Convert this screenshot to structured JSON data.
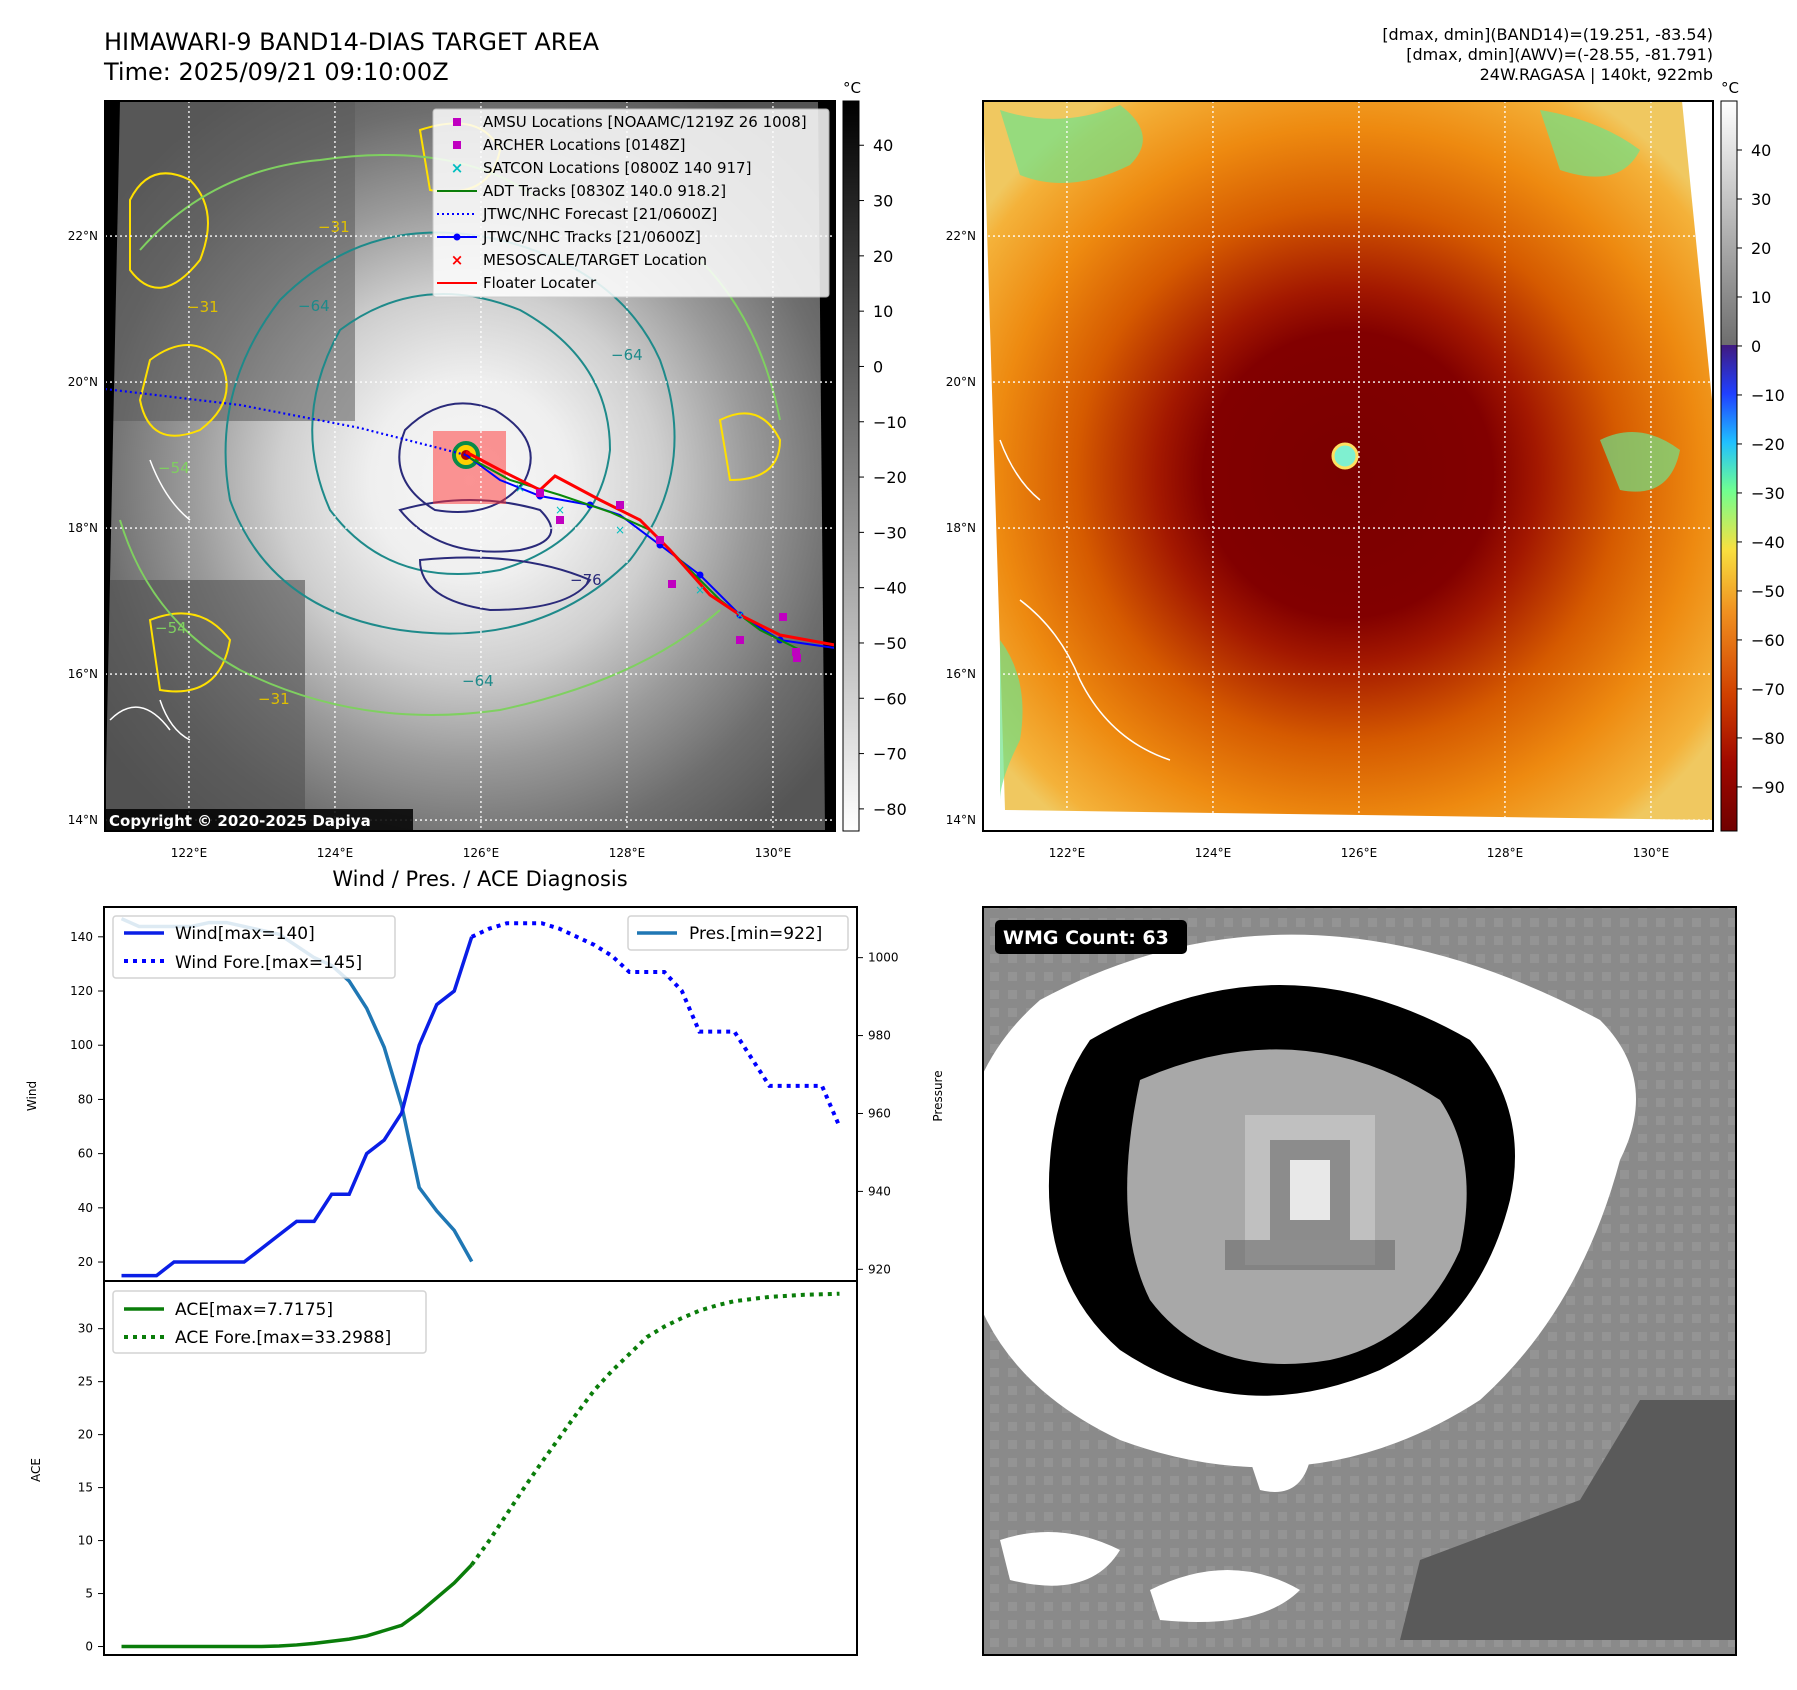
{
  "header": {
    "title_line1": "HIMAWARI-9 BAND14-DIAS TARGET AREA",
    "title_line2": "Time: 2025/09/21 09:10:00Z",
    "info_line1": "[dmax, dmin](BAND14)=(19.251, -83.54)",
    "info_line2": "[dmax, dmin](AWV)=(-28.55, -81.791)",
    "info_line3": "24W.RAGASA | 140kt, 922mb"
  },
  "map_axes": {
    "lat_labels": [
      "22°N",
      "20°N",
      "18°N",
      "16°N",
      "14°N"
    ],
    "lon_labels": [
      "122°E",
      "124°E",
      "126°E",
      "128°E",
      "130°E"
    ],
    "lat_values": [
      22,
      20,
      18,
      16,
      14
    ],
    "lon_values": [
      122,
      124,
      126,
      128,
      130
    ],
    "lon_range": [
      120.85,
      130.85
    ],
    "lat_range": [
      13.85,
      23.85
    ]
  },
  "colors": {
    "wind": "#0a1ee6",
    "pressure": "#1f77b4",
    "ace": "#0a7d0a",
    "track_red": "#ff0000",
    "forecast_blue": "#0000ff",
    "marker_magenta": "#c000c0",
    "marker_cyan": "#00bfbf",
    "badge_bg": "#000000",
    "badge_text": "#ffffff"
  },
  "legend_left": [
    {
      "label": "AMSU Locations [NOAAMC/1219Z 26 1008]",
      "marker": "square",
      "color": "#c000c0"
    },
    {
      "label": "ARCHER Locations [0148Z]",
      "marker": "square",
      "color": "#c000c0"
    },
    {
      "label": "SATCON Locations [0800Z 140 917]",
      "marker": "x",
      "color": "#00bfbf"
    },
    {
      "label": "ADT Tracks [0830Z 140.0 918.2]",
      "marker": "line",
      "color": "#0a7d0a"
    },
    {
      "label": "JTWC/NHC Forecast [21/0600Z]",
      "marker": "dotted",
      "color": "#0000ff"
    },
    {
      "label": "JTWC/NHC Tracks [21/0600Z]",
      "marker": "line-dot",
      "color": "#0000ff"
    },
    {
      "label": "MESOSCALE/TARGET Location",
      "marker": "x",
      "color": "#ff0000"
    },
    {
      "label": "Floater Locater",
      "marker": "line",
      "color": "#ff0000"
    }
  ],
  "colorbar_left": {
    "unit": "°C",
    "ticks": [
      "40",
      "30",
      "20",
      "10",
      "0",
      "−10",
      "−20",
      "−30",
      "−40",
      "−50",
      "−60",
      "−70",
      "−80"
    ],
    "tick_values": [
      40,
      30,
      20,
      10,
      0,
      -10,
      -20,
      -30,
      -40,
      -50,
      -60,
      -70,
      -80
    ],
    "range": [
      -84,
      48
    ]
  },
  "colorbar_right": {
    "unit": "°C",
    "ticks": [
      "40",
      "30",
      "20",
      "10",
      "0",
      "−10",
      "−20",
      "−30",
      "−40",
      "−50",
      "−60",
      "−70",
      "−80",
      "−90"
    ],
    "tick_values": [
      40,
      30,
      20,
      10,
      0,
      -10,
      -20,
      -30,
      -40,
      -50,
      -60,
      -70,
      -80,
      -90
    ],
    "range": [
      -99,
      50
    ]
  },
  "contour_labels": [
    "−64",
    "−64",
    "−64",
    "−76",
    "−31",
    "−31",
    "−31",
    "−54",
    "−54"
  ],
  "copyright": "Copyright © 2020-2025 Dapiya",
  "diag": {
    "title": "Wind / Pres. / ACE Diagnosis",
    "wind_ylabel": "Wind",
    "pres_ylabel": "Pressure",
    "ace_ylabel": "ACE",
    "wind_ticks": [
      "20",
      "40",
      "60",
      "80",
      "100",
      "120",
      "140"
    ],
    "wind_tick_values": [
      20,
      40,
      60,
      80,
      100,
      120,
      140
    ],
    "pres_ticks": [
      "920",
      "940",
      "960",
      "980",
      "1000"
    ],
    "pres_tick_values": [
      920,
      940,
      960,
      980,
      1000
    ],
    "ace_ticks": [
      "0",
      "5",
      "10",
      "15",
      "20",
      "25",
      "30"
    ],
    "ace_tick_values": [
      0,
      5,
      10,
      15,
      20,
      25,
      30
    ],
    "legend_wind": [
      "Wind[max=140]",
      "Wind Fore.[max=145]"
    ],
    "legend_pres": "Pres.[min=922]",
    "legend_ace": [
      "ACE[max=7.7175]",
      "ACE Fore.[max=33.2988]"
    ]
  },
  "chart_data": [
    {
      "type": "line",
      "title": "Wind / Pres. / ACE Diagnosis",
      "x": [
        0,
        1,
        2,
        3,
        4,
        5,
        6,
        7,
        8,
        9,
        10,
        11,
        12,
        13,
        14,
        15,
        16,
        17,
        18,
        19,
        20
      ],
      "xlim": [
        -1,
        42
      ],
      "ylabel": "Wind",
      "ylim": [
        13,
        151
      ],
      "series": [
        {
          "name": "Wind[max=140]",
          "values": [
            15,
            15,
            15,
            20,
            20,
            20,
            20,
            20,
            25,
            30,
            35,
            35,
            45,
            45,
            60,
            65,
            75,
            100,
            115,
            120,
            140
          ]
        },
        {
          "name": "Pres.[min=922]",
          "axis": "right",
          "ylim": [
            917,
            1013
          ],
          "values": [
            1010,
            1008,
            1008,
            1008,
            1008,
            1009,
            1009,
            1008,
            1007,
            1006,
            1003,
            1000,
            998,
            994,
            987,
            977,
            962,
            941,
            935,
            930,
            922
          ]
        }
      ]
    },
    {
      "type": "line",
      "title": "Wind Fore.[max=145]",
      "x": [
        20,
        21,
        22,
        23,
        24,
        25,
        26,
        27,
        28,
        29,
        30,
        31,
        32,
        33,
        34,
        35,
        36,
        37,
        38,
        39,
        40,
        41
      ],
      "ylim": [
        13,
        151
      ],
      "series": [
        {
          "name": "Wind Fore.[max=145]",
          "values": [
            140,
            143,
            145,
            145,
            145,
            143,
            140,
            137,
            133,
            127,
            127,
            127,
            120,
            105,
            105,
            105,
            95,
            85,
            85,
            85,
            85,
            70
          ]
        }
      ]
    },
    {
      "type": "line",
      "title": "ACE",
      "x": [
        0,
        1,
        2,
        3,
        4,
        5,
        6,
        7,
        8,
        9,
        10,
        11,
        12,
        13,
        14,
        15,
        16,
        17,
        18,
        19,
        20
      ],
      "xlim": [
        -1,
        42
      ],
      "ylabel": "ACE",
      "ylim": [
        -0.8,
        34.5
      ],
      "series": [
        {
          "name": "ACE[max=7.7175]",
          "values": [
            0,
            0,
            0,
            0,
            0,
            0,
            0,
            0,
            0,
            0.05,
            0.15,
            0.3,
            0.5,
            0.7,
            1.0,
            1.5,
            2.0,
            3.2,
            4.6,
            6.0,
            7.7175
          ]
        }
      ]
    },
    {
      "type": "line",
      "title": "ACE Fore.",
      "x": [
        20,
        21,
        22,
        23,
        24,
        25,
        26,
        27,
        28,
        29,
        30,
        31,
        32,
        33,
        34,
        35,
        36,
        37,
        38,
        39,
        40,
        41
      ],
      "ylim": [
        -0.8,
        34.5
      ],
      "series": [
        {
          "name": "ACE Fore.[max=33.2988]",
          "values": [
            7.7175,
            10.0,
            12.5,
            15.0,
            17.4,
            19.7,
            22.0,
            24.2,
            26.0,
            27.6,
            29.2,
            30.2,
            31.0,
            31.7,
            32.2,
            32.6,
            32.8,
            33.0,
            33.1,
            33.2,
            33.25,
            33.2988
          ]
        }
      ]
    }
  ],
  "wmg": {
    "badge": "WMG Count: 63"
  }
}
